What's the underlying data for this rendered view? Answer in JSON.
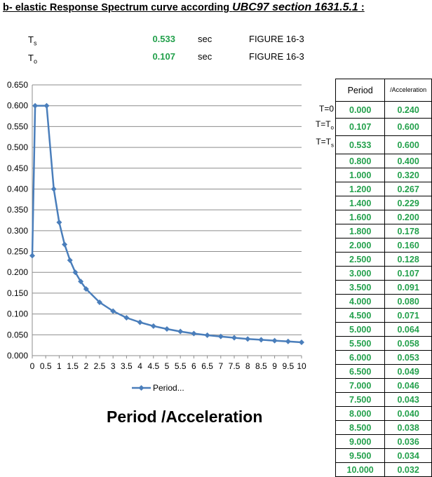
{
  "heading": {
    "prefix": "b- elastic Response Spectrum curve according ",
    "ref": "UBC97 section 1631.5.1",
    "suffix": " :"
  },
  "params": [
    {
      "sym": "T",
      "sub": "s",
      "value": "0.533",
      "unit": "sec",
      "ref": "FIGURE 16-3"
    },
    {
      "sym": "T",
      "sub": "o",
      "value": "0.107",
      "unit": "sec",
      "ref": "FIGURE 16-3"
    }
  ],
  "table": {
    "header_period": "Period",
    "header_accel": "/Acceleration",
    "row_labels": [
      {
        "text": "T=0",
        "sub": ""
      },
      {
        "text": "T=T",
        "sub": "o"
      },
      {
        "text": "T=T",
        "sub": "s"
      }
    ],
    "periods": [
      "0.000",
      "0.107",
      "0.533",
      "0.800",
      "1.000",
      "1.200",
      "1.400",
      "1.600",
      "1.800",
      "2.000",
      "2.500",
      "3.000",
      "3.500",
      "4.000",
      "4.500",
      "5.000",
      "5.500",
      "6.000",
      "6.500",
      "7.000",
      "7.500",
      "8.000",
      "8.500",
      "9.000",
      "9.500",
      "10.000"
    ],
    "accels": [
      "0.240",
      "0.600",
      "0.600",
      "0.400",
      "0.320",
      "0.267",
      "0.229",
      "0.200",
      "0.178",
      "0.160",
      "0.128",
      "0.107",
      "0.091",
      "0.080",
      "0.071",
      "0.064",
      "0.058",
      "0.053",
      "0.049",
      "0.046",
      "0.043",
      "0.040",
      "0.038",
      "0.036",
      "0.034",
      "0.032"
    ]
  },
  "chart_data": {
    "type": "line",
    "title": "Period  /Acceleration",
    "xlabel": "",
    "ylabel": "",
    "xlim": [
      0,
      10
    ],
    "ylim": [
      0,
      0.65
    ],
    "x_ticks": [
      "0",
      "0.5",
      "1",
      "1.5",
      "2",
      "2.5",
      "3",
      "3.5",
      "4",
      "4.5",
      "5",
      "5.5",
      "6",
      "6.5",
      "7",
      "7.5",
      "8",
      "8.5",
      "9",
      "9.5",
      "10"
    ],
    "y_ticks": [
      "0.000",
      "0.050",
      "0.100",
      "0.150",
      "0.200",
      "0.250",
      "0.300",
      "0.350",
      "0.400",
      "0.450",
      "0.500",
      "0.550",
      "0.600",
      "0.650"
    ],
    "grid": true,
    "legend_position": "bottom",
    "line_color": "#4a7ebb",
    "series": [
      {
        "name": "Period...",
        "x": [
          0,
          0.107,
          0.533,
          0.8,
          1.0,
          1.2,
          1.4,
          1.6,
          1.8,
          2.0,
          2.5,
          3.0,
          3.5,
          4.0,
          4.5,
          5.0,
          5.5,
          6.0,
          6.5,
          7.0,
          7.5,
          8.0,
          8.5,
          9.0,
          9.5,
          10.0
        ],
        "y": [
          0.24,
          0.6,
          0.6,
          0.4,
          0.32,
          0.267,
          0.229,
          0.2,
          0.178,
          0.16,
          0.128,
          0.107,
          0.091,
          0.08,
          0.071,
          0.064,
          0.058,
          0.053,
          0.049,
          0.046,
          0.043,
          0.04,
          0.038,
          0.036,
          0.034,
          0.032
        ]
      }
    ]
  }
}
